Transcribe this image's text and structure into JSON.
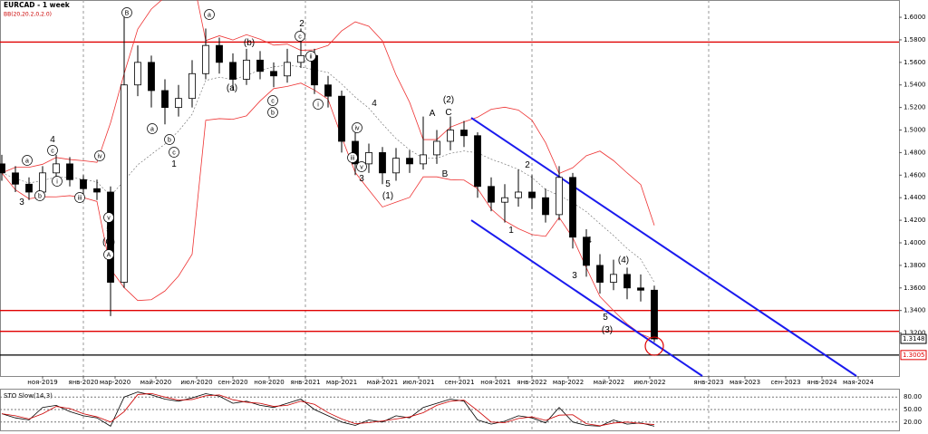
{
  "chart_data": {
    "type": "candlestick",
    "title": "EURCAD - 1 week",
    "subtitle": "BB(20,20.2,0,2.0)",
    "x": [
      0,
      3,
      6,
      9,
      12,
      15,
      18,
      21,
      24,
      27,
      30,
      33,
      36,
      39,
      42,
      45,
      48,
      51,
      54,
      57,
      60,
      63,
      66,
      69,
      72,
      75,
      78,
      81,
      84,
      87,
      90,
      93,
      96,
      99,
      102,
      105,
      108,
      111,
      114,
      117,
      120,
      123,
      126,
      129,
      132,
      135,
      138,
      141,
      144
    ],
    "open": [
      1.47,
      1.462,
      1.452,
      1.445,
      1.462,
      1.47,
      1.456,
      1.448,
      1.445,
      1.365,
      1.54,
      1.56,
      1.535,
      1.52,
      1.528,
      1.55,
      1.575,
      1.56,
      1.545,
      1.562,
      1.552,
      1.548,
      1.56,
      1.566,
      1.54,
      1.53,
      1.49,
      1.47,
      1.48,
      1.462,
      1.475,
      1.47,
      1.478,
      1.49,
      1.5,
      1.495,
      1.45,
      1.436,
      1.44,
      1.445,
      1.44,
      1.425,
      1.458,
      1.405,
      1.38,
      1.365,
      1.372,
      1.36,
      1.358
    ],
    "high": [
      1.478,
      1.468,
      1.458,
      1.468,
      1.478,
      1.476,
      1.46,
      1.456,
      1.45,
      1.6,
      1.575,
      1.566,
      1.545,
      1.54,
      1.562,
      1.59,
      1.582,
      1.568,
      1.572,
      1.57,
      1.56,
      1.572,
      1.59,
      1.572,
      1.548,
      1.535,
      1.5,
      1.488,
      1.485,
      1.484,
      1.482,
      1.512,
      1.5,
      1.512,
      1.508,
      1.498,
      1.458,
      1.452,
      1.465,
      1.46,
      1.448,
      1.468,
      1.462,
      1.412,
      1.39,
      1.385,
      1.378,
      1.372,
      1.362
    ],
    "low": [
      1.455,
      1.445,
      1.438,
      1.44,
      1.458,
      1.45,
      1.442,
      1.438,
      1.335,
      1.36,
      1.53,
      1.52,
      1.505,
      1.512,
      1.52,
      1.545,
      1.55,
      1.535,
      1.54,
      1.545,
      1.538,
      1.542,
      1.555,
      1.532,
      1.52,
      1.48,
      1.46,
      1.462,
      1.452,
      1.455,
      1.462,
      1.465,
      1.47,
      1.482,
      1.485,
      1.44,
      1.428,
      1.418,
      1.432,
      1.43,
      1.418,
      1.42,
      1.395,
      1.37,
      1.355,
      1.358,
      1.35,
      1.348,
      1.312
    ],
    "close": [
      1.462,
      1.452,
      1.445,
      1.462,
      1.47,
      1.456,
      1.448,
      1.445,
      1.365,
      1.54,
      1.56,
      1.535,
      1.52,
      1.528,
      1.55,
      1.575,
      1.56,
      1.545,
      1.562,
      1.552,
      1.548,
      1.56,
      1.566,
      1.54,
      1.53,
      1.49,
      1.47,
      1.48,
      1.462,
      1.475,
      1.47,
      1.478,
      1.49,
      1.5,
      1.495,
      1.45,
      1.436,
      1.44,
      1.445,
      1.44,
      1.425,
      1.458,
      1.405,
      1.38,
      1.365,
      1.372,
      1.36,
      1.358,
      1.3148
    ],
    "xlim": [
      -0.4,
      198
    ],
    "ylim": [
      1.2819,
      1.6153
    ],
    "xticks": [
      {
        "value": 9,
        "label": "ноя-2019"
      },
      {
        "value": 18,
        "label": "янв-2020"
      },
      {
        "value": 25,
        "label": "мар-2020"
      },
      {
        "value": 34,
        "label": "май-2020"
      },
      {
        "value": 43,
        "label": "июл-2020"
      },
      {
        "value": 51,
        "label": "сен-2020"
      },
      {
        "value": 59,
        "label": "ноя-2020"
      },
      {
        "value": 67,
        "label": "янв-2021"
      },
      {
        "value": 75,
        "label": "мар-2021"
      },
      {
        "value": 84,
        "label": "май-2021"
      },
      {
        "value": 92,
        "label": "июл-2021"
      },
      {
        "value": 101,
        "label": "сен-2021"
      },
      {
        "value": 109,
        "label": "ноя-2021"
      },
      {
        "value": 117,
        "label": "янв-2022"
      },
      {
        "value": 125,
        "label": "мар-2022"
      },
      {
        "value": 134,
        "label": "май-2022"
      },
      {
        "value": 143,
        "label": "июл-2022"
      },
      {
        "value": 156,
        "label": "янв-2023"
      },
      {
        "value": 164,
        "label": "мая-2023"
      },
      {
        "value": 173,
        "label": "сен-2023"
      },
      {
        "value": 181,
        "label": "янв-2024"
      },
      {
        "value": 189,
        "label": "мая-2024"
      }
    ],
    "yticks": [
      {
        "value": 1.6,
        "label": "1.6000"
      },
      {
        "value": 1.58,
        "label": "1.5800"
      },
      {
        "value": 1.56,
        "label": "1.5600"
      },
      {
        "value": 1.54,
        "label": "1.5400"
      },
      {
        "value": 1.52,
        "label": "1.5200"
      },
      {
        "value": 1.5,
        "label": "1.5000"
      },
      {
        "value": 1.48,
        "label": "1.4800"
      },
      {
        "value": 1.46,
        "label": "1.4600"
      },
      {
        "value": 1.44,
        "label": "1.4400"
      },
      {
        "value": 1.42,
        "label": "1.4200"
      },
      {
        "value": 1.4,
        "label": "1.4000"
      },
      {
        "value": 1.38,
        "label": "1.3800"
      },
      {
        "value": 1.36,
        "label": "1.3600"
      },
      {
        "value": 1.34,
        "label": "1.3400"
      },
      {
        "value": 1.32,
        "label": "1.3200"
      }
    ],
    "hlines": [
      {
        "value": 1.578,
        "color": "#e00000"
      },
      {
        "value": 1.34,
        "color": "#e00000"
      },
      {
        "value": 1.3215,
        "color": "#e00000"
      },
      {
        "value": 1.3005,
        "color": "#000000",
        "tag": true
      }
    ],
    "last_price": 1.3148,
    "channels": [
      {
        "color": "#1a1aee",
        "x": [
          103.6,
          188.6
        ],
        "y": [
          1.5108,
          1.2819
        ]
      },
      {
        "color": "#1a1aee",
        "x": [
          103.6,
          154.6
        ],
        "y": [
          1.42,
          1.2819
        ]
      }
    ],
    "band_color": "#ee3333",
    "annotations": [
      "B",
      "a",
      "2",
      "c",
      "(b)",
      "ii",
      "(a)",
      "c",
      "b",
      "i",
      "4",
      "iv",
      "iii",
      "v",
      "3",
      "5",
      "(1)",
      "A",
      "(2)",
      "C",
      "B",
      "2",
      "1",
      "4",
      "3",
      "(4)",
      "5",
      "(3)",
      "4",
      "c",
      "a",
      "i",
      "b",
      "iii",
      "3",
      "iv",
      "v",
      "5",
      "(C)",
      "A",
      "a",
      "b",
      "c",
      "1"
    ],
    "sto": {
      "title": "STO Slow(14,3)",
      "ylim": [
        0,
        100
      ],
      "yticks": [
        {
          "value": 80,
          "label": "80.00"
        },
        {
          "value": 50,
          "label": "50.00"
        },
        {
          "value": 20,
          "label": "20.00"
        }
      ],
      "values": [
        40,
        30,
        25,
        55,
        60,
        45,
        35,
        30,
        10,
        80,
        92,
        85,
        75,
        70,
        78,
        88,
        82,
        65,
        70,
        60,
        55,
        65,
        75,
        50,
        35,
        20,
        12,
        25,
        20,
        35,
        30,
        55,
        65,
        75,
        70,
        25,
        15,
        22,
        35,
        30,
        18,
        55,
        20,
        12,
        10,
        25,
        15,
        18,
        10
      ]
    }
  }
}
